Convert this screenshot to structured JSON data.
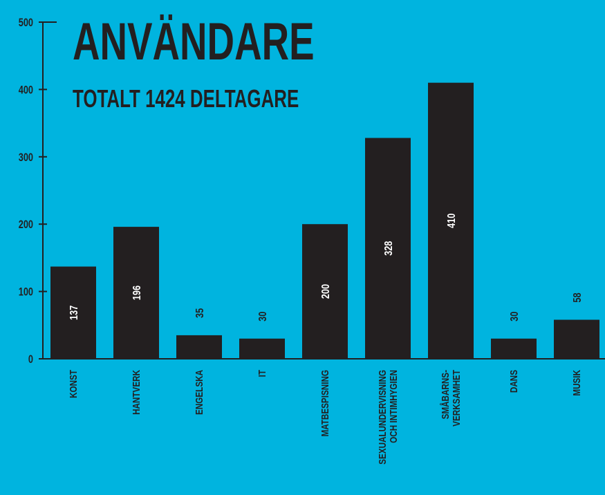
{
  "chart_data": {
    "type": "bar",
    "title": "ANVÄNDARE",
    "subtitle": "TOTALT 1424 DELTAGARE",
    "categories": [
      "KONST",
      "HANTVERK",
      "ENGELSKA",
      "IT",
      "MATBESPISNING",
      "SEXUALUNDERVISNING\nOCH INTIMHYGIEN",
      "SMÅBARNS-\nVERKSAMHET",
      "DANS",
      "MUSIK"
    ],
    "values": [
      137,
      196,
      35,
      30,
      200,
      328,
      410,
      30,
      58
    ],
    "color": "#231f20",
    "ylim": [
      0,
      500
    ],
    "yticks": [
      0,
      100,
      200,
      300,
      400,
      500
    ],
    "grid": false
  }
}
